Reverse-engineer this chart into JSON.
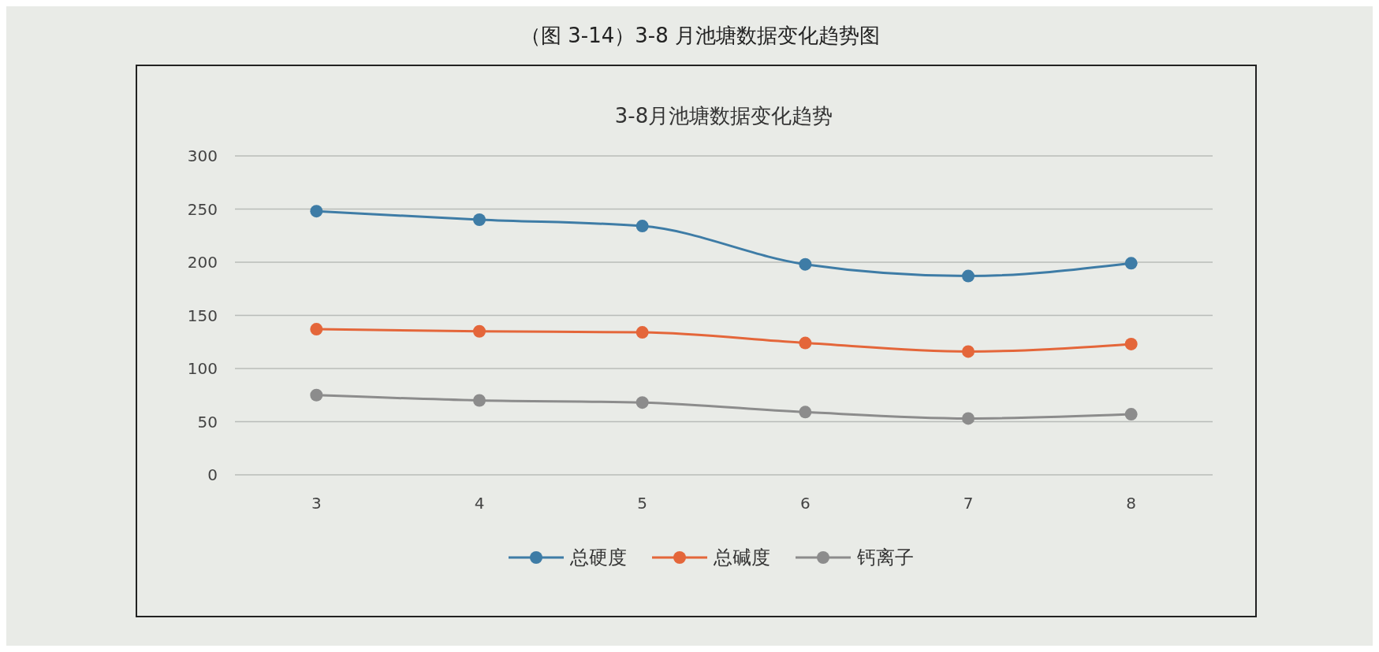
{
  "chart_data": {
    "type": "line",
    "title": "3-8月池塘数据变化趋势",
    "annotations": [
      "（图 3-14）3-8 月池塘数据变化趋势图"
    ],
    "categories": [
      "3",
      "4",
      "5",
      "6",
      "7",
      "8"
    ],
    "series": [
      {
        "name": "总硬度",
        "color": "#3e7ca6",
        "values": [
          248,
          240,
          234,
          198,
          187,
          199
        ]
      },
      {
        "name": "总碱度",
        "color": "#e4663a",
        "values": [
          137,
          135,
          134,
          124,
          116,
          123
        ]
      },
      {
        "name": "钙离子",
        "color": "#8c8c8c",
        "values": [
          75,
          70,
          68,
          59,
          53,
          57
        ]
      }
    ],
    "ylim": [
      0,
      300
    ],
    "yticks": [
      0,
      50,
      100,
      150,
      200,
      250,
      300
    ],
    "grid": "y",
    "legend": "bottom",
    "marker": "circle"
  }
}
